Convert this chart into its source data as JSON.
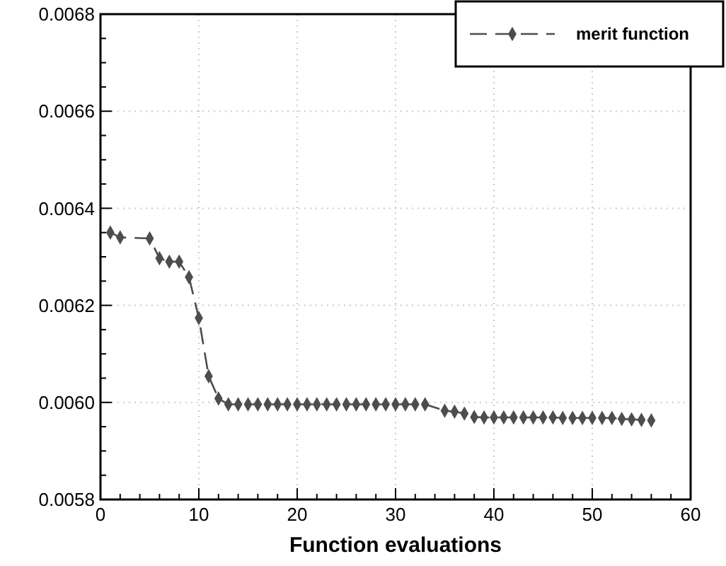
{
  "chart_data": {
    "type": "line",
    "xlabel": "Function evaluations",
    "x": [
      1,
      2,
      5,
      6,
      7,
      8,
      9,
      10,
      11,
      12,
      13,
      14,
      15,
      16,
      17,
      18,
      19,
      20,
      21,
      22,
      23,
      24,
      25,
      26,
      27,
      28,
      29,
      30,
      31,
      32,
      33,
      35,
      36,
      37,
      38,
      39,
      40,
      41,
      42,
      43,
      44,
      45,
      46,
      47,
      48,
      49,
      50,
      51,
      52,
      53,
      54,
      55,
      56
    ],
    "series": [
      {
        "name": "merit function",
        "color": "#4d4d4d",
        "values": [
          0.00635,
          0.00634,
          0.006338,
          0.006297,
          0.00629,
          0.00629,
          0.006258,
          0.006174,
          0.006054,
          0.006008,
          0.005996,
          0.005996,
          0.005996,
          0.005996,
          0.005996,
          0.005996,
          0.005996,
          0.005996,
          0.005996,
          0.005996,
          0.005996,
          0.005996,
          0.005996,
          0.005996,
          0.005996,
          0.005996,
          0.005996,
          0.005996,
          0.005996,
          0.005996,
          0.005996,
          0.005983,
          0.005981,
          0.005977,
          0.00597,
          0.005969,
          0.005969,
          0.005969,
          0.005969,
          0.005969,
          0.005969,
          0.005969,
          0.005969,
          0.005968,
          0.005968,
          0.005968,
          0.005968,
          0.005968,
          0.005968,
          0.005966,
          0.005965,
          0.005964,
          0.005963
        ]
      }
    ],
    "xlim": [
      0,
      60
    ],
    "xticks": [
      0,
      10,
      20,
      30,
      40,
      50,
      60
    ],
    "ylim": [
      0.0058,
      0.0068
    ],
    "yticks": [
      0.0058,
      {
        "value": 0.006,
        "label": "0.0060"
      },
      0.0062,
      0.0064,
      0.0066,
      0.0068
    ],
    "grid": true,
    "legend": "top right",
    "marker": "diamond",
    "line_style": "dashed"
  }
}
